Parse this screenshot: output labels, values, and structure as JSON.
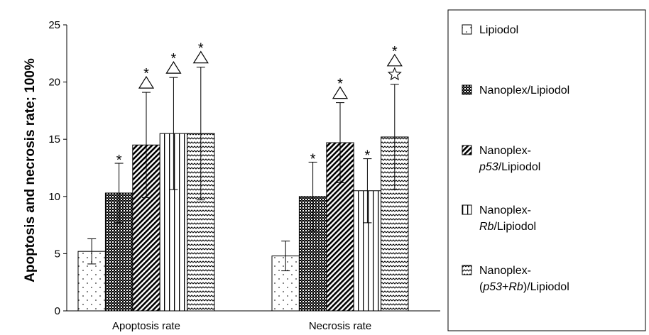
{
  "chart_data": {
    "type": "bar",
    "ylabel": "Apoptosis and necrosis rate; 100%",
    "xlabel": "",
    "ylim": [
      0,
      25
    ],
    "yticks": [
      0,
      5,
      10,
      15,
      20,
      25
    ],
    "grid": false,
    "legend_position": "right",
    "categories": [
      "Apoptosis rate",
      "Necrosis rate"
    ],
    "series": [
      {
        "name": "Lipiodol",
        "legend_parts": [
          {
            "text": "Lipiodol",
            "italic": false
          }
        ],
        "pattern": "dots",
        "values": [
          5.2,
          4.8
        ],
        "errors": [
          1.1,
          1.3
        ],
        "annotations": [
          [],
          []
        ]
      },
      {
        "name": "Nanoplex/Lipiodol",
        "legend_parts": [
          {
            "text": "Nanoplex/Lipiodol",
            "italic": false
          }
        ],
        "pattern": "crosshatch",
        "values": [
          10.3,
          10.0
        ],
        "errors": [
          2.6,
          3.0
        ],
        "annotations": [
          [
            "*"
          ],
          [
            "*"
          ]
        ]
      },
      {
        "name": "Nanoplex-p53/Lipiodol",
        "legend_parts": [
          {
            "text": "Nanoplex-",
            "italic": false
          },
          {
            "text": "p53",
            "italic": true,
            "newline": true
          },
          {
            "text": "/Lipiodol",
            "italic": false
          }
        ],
        "pattern": "diagonal",
        "values": [
          14.5,
          14.7
        ],
        "errors": [
          4.6,
          3.5
        ],
        "annotations": [
          [
            "*",
            "triangle"
          ],
          [
            "*",
            "triangle"
          ]
        ]
      },
      {
        "name": "Nanoplex-Rb/Lipiodol",
        "legend_parts": [
          {
            "text": "Nanoplex-",
            "italic": false
          },
          {
            "text": "Rb",
            "italic": true,
            "newline": true
          },
          {
            "text": "/Lipiodol",
            "italic": false
          }
        ],
        "pattern": "vertical",
        "values": [
          15.5,
          10.5
        ],
        "errors": [
          4.9,
          2.8
        ],
        "annotations": [
          [
            "*",
            "triangle"
          ],
          [
            "*"
          ]
        ]
      },
      {
        "name": "Nanoplex-(p53+Rb)/Lipiodol",
        "legend_parts": [
          {
            "text": "Nanoplex-",
            "italic": false
          },
          {
            "text": "(",
            "italic": false,
            "newline": true
          },
          {
            "text": "p53",
            "italic": true
          },
          {
            "text": "+",
            "italic": false
          },
          {
            "text": "Rb",
            "italic": true
          },
          {
            "text": ")/Lipiodol",
            "italic": false
          }
        ],
        "pattern": "wavy",
        "values": [
          15.5,
          15.2
        ],
        "errors": [
          5.8,
          4.6
        ],
        "annotations": [
          [
            "*",
            "triangle"
          ],
          [
            "*",
            "triangle",
            "star"
          ]
        ]
      }
    ]
  }
}
